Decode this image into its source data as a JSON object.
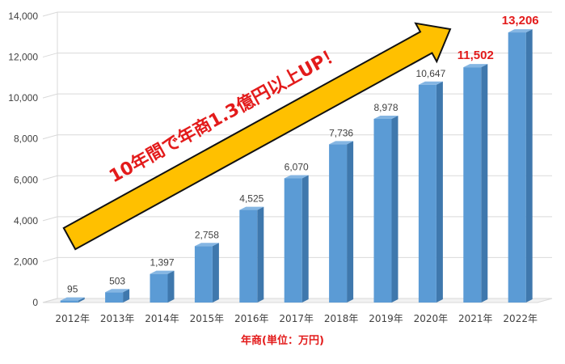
{
  "chart_data": {
    "type": "bar",
    "style": "3d-column",
    "categories": [
      "2012年",
      "2013年",
      "2014年",
      "2015年",
      "2016年",
      "2017年",
      "2018年",
      "2019年",
      "2020年",
      "2021年",
      "2022年"
    ],
    "values": [
      95,
      503,
      1397,
      2758,
      4525,
      6070,
      7736,
      8978,
      10647,
      11502,
      13206
    ],
    "value_labels": [
      "95",
      "503",
      "1,397",
      "2,758",
      "4,525",
      "6,070",
      "7,736",
      "8,978",
      "10,647",
      "11,502",
      "13,206"
    ],
    "highlight_indices": [
      9,
      10
    ],
    "ylim": [
      0,
      14000
    ],
    "y_ticks": [
      0,
      2000,
      4000,
      6000,
      8000,
      10000,
      12000,
      14000
    ],
    "y_tick_labels": [
      "0",
      "2,000",
      "4,000",
      "6,000",
      "8,000",
      "10,000",
      "12,000",
      "14,000"
    ],
    "xlabel": "年商(単位：万円)",
    "annotation": "10年間で年商1.3億円以上UP！",
    "grid": true,
    "legend": "none"
  },
  "colors": {
    "bar_front": "#5b9bd5",
    "bar_side": "#3f78ad",
    "bar_top": "#85b6e3",
    "grid": "#d9d9d9",
    "text": "#404040",
    "highlight": "#e31b1b",
    "arrow_fill": "#ffc000",
    "arrow_stroke": "#111111",
    "annotation_text": "#e31b1b"
  }
}
